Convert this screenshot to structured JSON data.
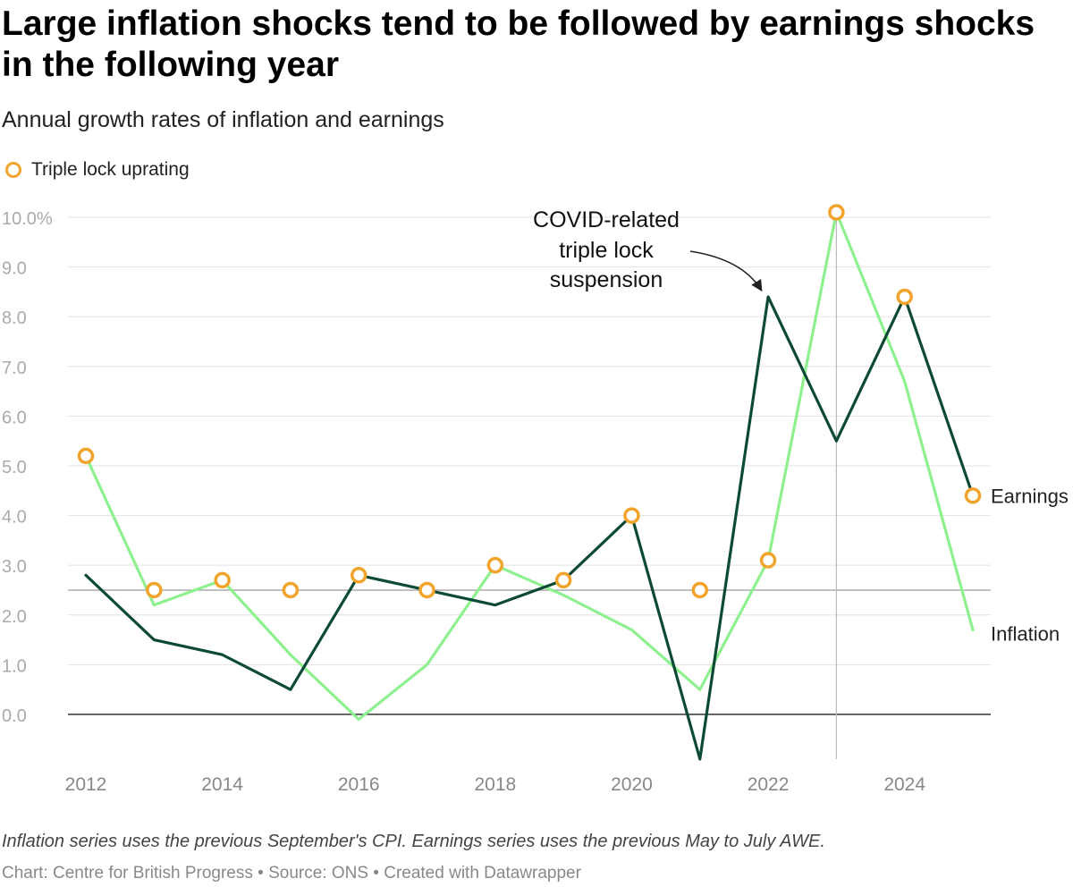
{
  "chart_data": {
    "type": "line",
    "title": "Large inflation shocks tend to be followed by earnings shocks in the following year",
    "subtitle": "Annual growth rates of inflation and earnings",
    "legend": [
      {
        "label": "Triple lock uprating",
        "marker": "circle"
      }
    ],
    "x": [
      2012,
      2013,
      2014,
      2015,
      2016,
      2017,
      2018,
      2019,
      2020,
      2021,
      2022,
      2023,
      2024,
      2025
    ],
    "x_ticks": [
      2012,
      2014,
      2016,
      2018,
      2020,
      2022,
      2024
    ],
    "x_tick_labels": [
      "2012",
      "2014",
      "2016",
      "2018",
      "2020",
      "2022",
      "2024"
    ],
    "ylim": [
      -0.9,
      10.0
    ],
    "y_ticks": [
      0,
      1,
      2,
      3,
      4,
      5,
      6,
      7,
      8,
      9,
      10
    ],
    "y_tick_labels": [
      "0.0",
      "1.0",
      "2.0",
      "3.0",
      "4.0",
      "5.0",
      "6.0",
      "7.0",
      "8.0",
      "9.0",
      "10.0%"
    ],
    "reference_line_y": 2.5,
    "reference_line_x": 2023,
    "series": [
      {
        "name": "Inflation",
        "label": "Inflation",
        "color": "#8ef08e",
        "values": [
          5.2,
          2.2,
          2.7,
          1.2,
          -0.1,
          1.0,
          3.0,
          2.4,
          1.7,
          0.5,
          3.1,
          10.1,
          6.7,
          1.7
        ]
      },
      {
        "name": "Earnings",
        "label": "Earnings",
        "color": "#0d4a35",
        "values": [
          2.8,
          1.5,
          1.2,
          0.5,
          2.8,
          2.5,
          2.2,
          2.7,
          4.0,
          -0.9,
          8.4,
          5.5,
          8.4,
          4.4
        ]
      },
      {
        "name": "Triple lock uprating",
        "marker_color": "#f1a42b",
        "x": [
          2012,
          2013,
          2014,
          2015,
          2016,
          2017,
          2018,
          2019,
          2020,
          2021,
          2022,
          2023,
          2024,
          2025
        ],
        "values": [
          5.2,
          2.5,
          2.7,
          2.5,
          2.8,
          2.5,
          3.0,
          2.7,
          4.0,
          2.5,
          3.1,
          10.1,
          8.4,
          4.4
        ]
      }
    ],
    "annotation": {
      "lines": [
        "COVID-related",
        "triple lock",
        "suspension"
      ],
      "x": 2022,
      "y": 8.4
    },
    "note": "Inflation series uses the previous September's CPI. Earnings series uses the previous May to July AWE.",
    "footer": "Chart: Centre for British Progress • Source: ONS • Created with Datawrapper"
  }
}
